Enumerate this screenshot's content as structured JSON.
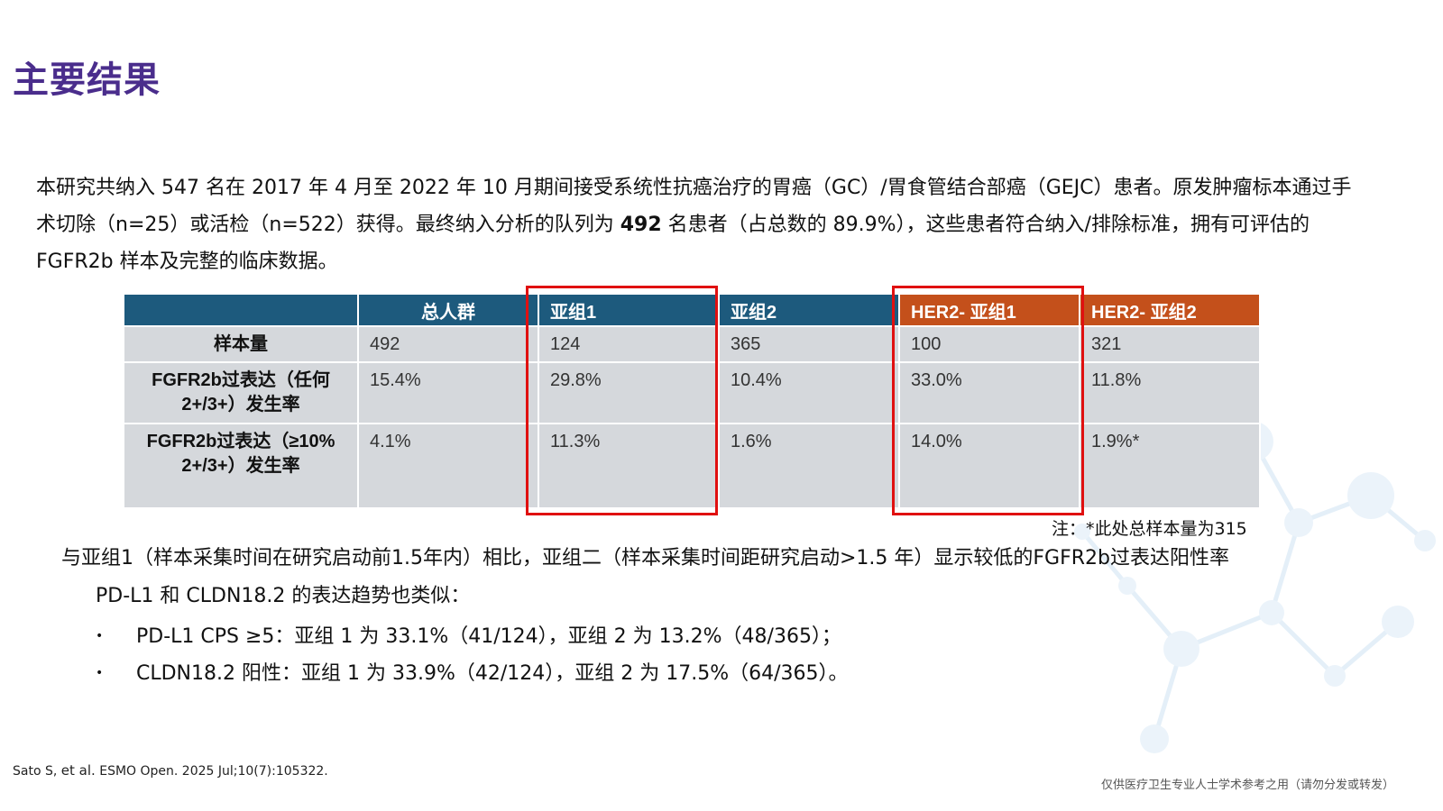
{
  "header": {
    "title": "主要结果"
  },
  "intro": {
    "part1": "本研究共纳入 547 名在 2017 年 4 月至 2022 年 10 月期间接受系统性抗癌治疗的胃癌（GC）/胃食管结合部癌（GEJC）患者。原发肿瘤标本通过手术切除（n=25）或活检（n=522）获得。最终纳入分析的队列为 ",
    "bold": "492",
    "part2": " 名患者（占总数的 89.9%），这些患者符合纳入/排除标准，拥有可评估的 FGFR2b 样本及完整的临床数据。"
  },
  "table": {
    "headers": [
      "",
      "总人群",
      "亚组1",
      "亚组2",
      "HER2- 亚组1",
      "HER2- 亚组2"
    ],
    "rows": [
      {
        "label": "样本量",
        "values": [
          "492",
          "124",
          "365",
          "100",
          "321"
        ]
      },
      {
        "label": "FGFR2b过表达（任何 2+/3+）发生率",
        "values": [
          "15.4%",
          "29.8%",
          "10.4%",
          "33.0%",
          "11.8%"
        ]
      },
      {
        "label": "FGFR2b过表达（≥10% 2+/3+）发生率",
        "values": [
          "4.1%",
          "11.3%",
          "1.6%",
          "14.0%",
          "1.9%*"
        ]
      }
    ],
    "note": "注：*此处总样本量为315"
  },
  "summary": "与亚组1（样本采集时间在研究启动前1.5年内）相比，亚组二（样本采集时间距研究启动>1.5 年）显示较低的FGFR2b过表达阳性率",
  "subtext": "PD-L1 和 CLDN18.2 的表达趋势也类似：",
  "bullets": [
    {
      "marker": "•",
      "text": "PD-L1 CPS ≥5：亚组 1 为 33.1%（41/124），亚组 2 为 13.2%（48/365）；"
    },
    {
      "marker": "•",
      "text": "CLDN18.2 阳性：亚组 1 为 33.9%（42/124），亚组 2 为 17.5%（64/365）。"
    }
  ],
  "citation": {
    "author": "Sato S,",
    "etal": "et al.",
    "source": "ESMO Open. 2025 Jul;10(7):105322."
  },
  "disclaimer": "仅供医疗卫生专业人士学术参考之用（请勿分发或转发）",
  "colors": {
    "title": "#4a2d8c",
    "header_blue": "#1d5a7d",
    "header_orange": "#c4501b",
    "cell_gray": "#d5d8dc",
    "highlight_red": "#e01010"
  }
}
